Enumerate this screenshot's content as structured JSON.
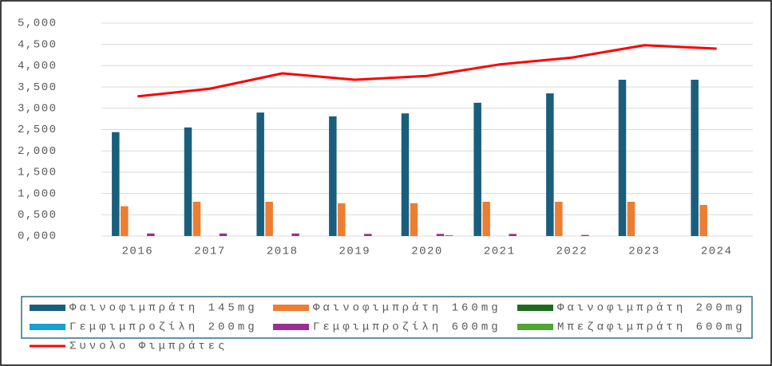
{
  "chart_data": {
    "type": "bar",
    "categories": [
      "2016",
      "2017",
      "2018",
      "2019",
      "2020",
      "2021",
      "2022",
      "2023",
      "2024"
    ],
    "series": [
      {
        "name": "Φαινοφιμπράτη 145mg",
        "color": "#1a5e7e",
        "values": [
          2440,
          2550,
          2900,
          2810,
          2880,
          3130,
          3350,
          3670,
          3670
        ]
      },
      {
        "name": "Φαινοφιμπράτη 160mg",
        "color": "#ed7d31",
        "values": [
          700,
          805,
          805,
          770,
          770,
          805,
          805,
          805,
          730
        ]
      },
      {
        "name": "Φαινοφιμπράτη 200mg",
        "color": "#1e6b1e",
        "values": [
          0,
          0,
          0,
          0,
          0,
          0,
          0,
          0,
          0
        ]
      },
      {
        "name": "Γεμφιμπροζίλη 200mg",
        "color": "#1aa0d4",
        "values": [
          0,
          0,
          0,
          0,
          0,
          0,
          0,
          0,
          0
        ]
      },
      {
        "name": "Γεμφιμπροζίλη 600mg",
        "color": "#9b2e8f",
        "values": [
          60,
          60,
          60,
          50,
          50,
          50,
          25,
          0,
          0
        ]
      },
      {
        "name": "Μπεζαφιμπράτη 600mg",
        "color": "#4ea72e",
        "values": [
          0,
          0,
          0,
          0,
          20,
          0,
          0,
          0,
          0
        ]
      },
      {
        "name": "Συνολο Φιμπράτες",
        "color": "#ff0000",
        "type": "line",
        "values": [
          3280,
          3460,
          3820,
          3670,
          3760,
          4030,
          4190,
          4480,
          4400
        ]
      }
    ],
    "ylim": [
      0,
      5000
    ],
    "yticks": [
      {
        "value": 0,
        "label": "0,000"
      },
      {
        "value": 500,
        "label": "0,500"
      },
      {
        "value": 1000,
        "label": "1,000"
      },
      {
        "value": 1500,
        "label": "1,500"
      },
      {
        "value": 2000,
        "label": "2,000"
      },
      {
        "value": 2500,
        "label": "2,500"
      },
      {
        "value": 3000,
        "label": "3,000"
      },
      {
        "value": 3500,
        "label": "3,500"
      },
      {
        "value": 4000,
        "label": "4,000"
      },
      {
        "value": 4500,
        "label": "4,500"
      },
      {
        "value": 5000,
        "label": "5,000"
      }
    ],
    "grid": true,
    "legend": "bottom"
  }
}
